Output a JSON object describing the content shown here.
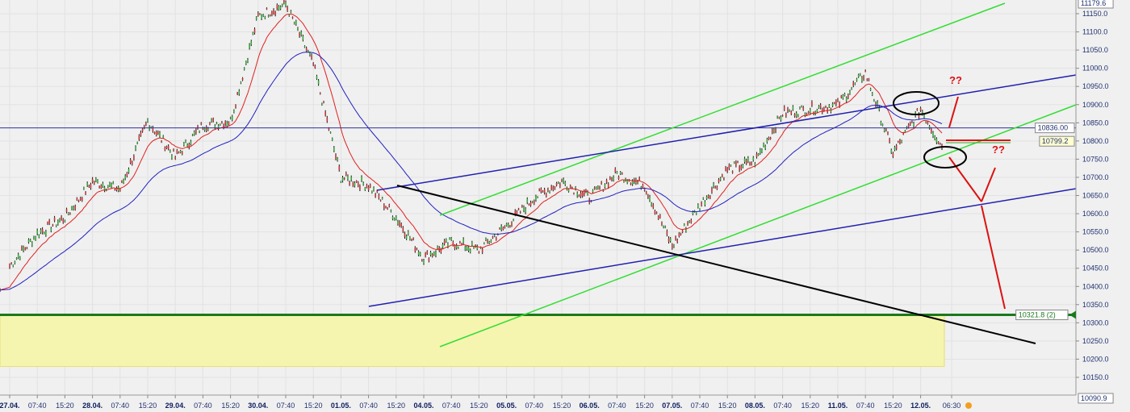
{
  "chart_data": {
    "type": "line",
    "title": "",
    "xlabel": "",
    "ylabel": "",
    "ylim": [
      10090.9,
      11179.6
    ],
    "grid": true,
    "x_ticks": [
      "27.04.",
      "07:40",
      "15:20",
      "28.04.",
      "07:40",
      "15:20",
      "29.04.",
      "07:40",
      "15:20",
      "30.04.",
      "07:40",
      "15:20",
      "01.05.",
      "07:40",
      "15:20",
      "04.05.",
      "07:40",
      "15:20",
      "05.05.",
      "07:40",
      "15:20",
      "06.05.",
      "07:40",
      "15:20",
      "07.05.",
      "07:40",
      "15:20",
      "08.05.",
      "07:40",
      "15:20",
      "11.05.",
      "07:40",
      "15:20",
      "12.05.",
      "06:30"
    ],
    "y_ticks": [
      10150,
      10200,
      10250,
      10300,
      10350,
      10400,
      10450,
      10500,
      10550,
      10600,
      10650,
      10700,
      10750,
      10800,
      10850,
      10900,
      10950,
      11000,
      11050,
      11100,
      11150
    ],
    "y_tick_labels": [
      "10150.0",
      "10200.0",
      "10250.0",
      "10300.0",
      "10350.0",
      "10400.0",
      "10450.0",
      "10500.0",
      "10550.0",
      "10600.0",
      "10650.0",
      "10700.0",
      "10750.0",
      "10800.0",
      "10850.0",
      "10900.0",
      "10950.0",
      "11000.0",
      "11050.0",
      "11100.0",
      "11150.0"
    ],
    "series": [
      {
        "type": "price",
        "color": "#000000",
        "x": [
          "27.04.",
          "07:40",
          "15:20",
          "28.04.",
          "07:40",
          "15:20",
          "29.04.",
          "07:40",
          "15:20",
          "30.04.",
          "07:40",
          "15:20",
          "01.05.",
          "07:40",
          "15:20",
          "04.05.",
          "07:40",
          "15:20",
          "05.05.",
          "07:40",
          "15:20",
          "06.05.",
          "07:40",
          "15:20",
          "07.05.",
          "07:40",
          "15:20",
          "08.05.",
          "07:40",
          "15:20",
          "11.05.",
          "07:40",
          "15:20",
          "12.05.",
          "06:30"
        ],
        "values": [
          10456,
          10545,
          10589,
          10689,
          10667,
          10855,
          10755,
          10844,
          10855,
          11143,
          11176,
          11010,
          10700,
          10678,
          10589,
          10478,
          10522,
          10500,
          10567,
          10644,
          10689,
          10644,
          10711,
          10678,
          10511,
          10622,
          10722,
          10744,
          10877,
          10888,
          10900,
          10988,
          10766,
          10888,
          10784
        ]
      },
      {
        "type": "moving-average-fast",
        "color": "#e02020"
      },
      {
        "type": "moving-average-slow",
        "color": "#2020c0"
      }
    ],
    "axis_labels": {
      "top": "11179.6",
      "bottom": "10090.9",
      "hline": "10836.00",
      "last": "10799.2",
      "support": "10321.8 (2)"
    },
    "levels": {
      "hline": 10836.0,
      "last": 10799.2,
      "support": 10321.8,
      "zone": [
        10180,
        10321.8
      ]
    },
    "annotations": [
      "??",
      "??"
    ],
    "colors": {
      "channel_green": "#33dd33",
      "channel_blue": "#2020b0",
      "trend_black": "#000000",
      "arrows_red": "#dd1111",
      "zone": "#f5f5b0",
      "support": "#1a7a1a"
    }
  }
}
